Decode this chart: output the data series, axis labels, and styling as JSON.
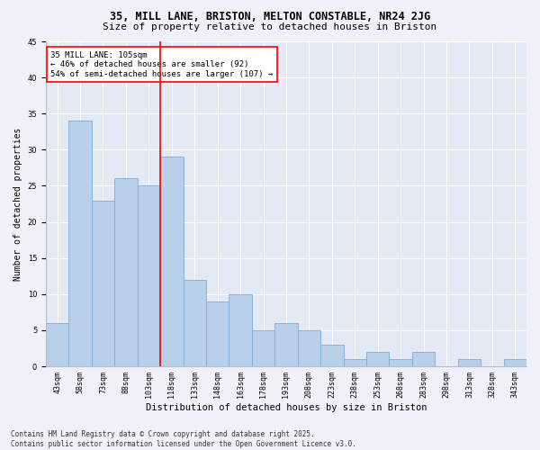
{
  "title1": "35, MILL LANE, BRISTON, MELTON CONSTABLE, NR24 2JG",
  "title2": "Size of property relative to detached houses in Briston",
  "xlabel": "Distribution of detached houses by size in Briston",
  "ylabel": "Number of detached properties",
  "categories": [
    "43sqm",
    "58sqm",
    "73sqm",
    "88sqm",
    "103sqm",
    "118sqm",
    "133sqm",
    "148sqm",
    "163sqm",
    "178sqm",
    "193sqm",
    "208sqm",
    "223sqm",
    "238sqm",
    "253sqm",
    "268sqm",
    "283sqm",
    "298sqm",
    "313sqm",
    "328sqm",
    "343sqm"
  ],
  "values": [
    6,
    34,
    23,
    26,
    25,
    29,
    12,
    9,
    10,
    5,
    6,
    5,
    3,
    1,
    2,
    1,
    2,
    0,
    1,
    0,
    1
  ],
  "bar_color": "#b8d0ea",
  "bar_edge_color": "#7aadd4",
  "vline_index": 4.5,
  "vline_color": "red",
  "annotation_text": "35 MILL LANE: 105sqm\n← 46% of detached houses are smaller (92)\n54% of semi-detached houses are larger (107) →",
  "annotation_box_color": "white",
  "annotation_box_edge": "red",
  "ylim": [
    0,
    45
  ],
  "yticks": [
    0,
    5,
    10,
    15,
    20,
    25,
    30,
    35,
    40,
    45
  ],
  "footnote": "Contains HM Land Registry data © Crown copyright and database right 2025.\nContains public sector information licensed under the Open Government Licence v3.0.",
  "bg_color": "#eef2f8",
  "plot_bg_color": "#e4eaf4",
  "title1_fontsize": 8.5,
  "title2_fontsize": 8.0,
  "xlabel_fontsize": 7.5,
  "ylabel_fontsize": 7.0,
  "tick_fontsize": 6.0,
  "annot_fontsize": 6.5,
  "footnote_fontsize": 5.5
}
